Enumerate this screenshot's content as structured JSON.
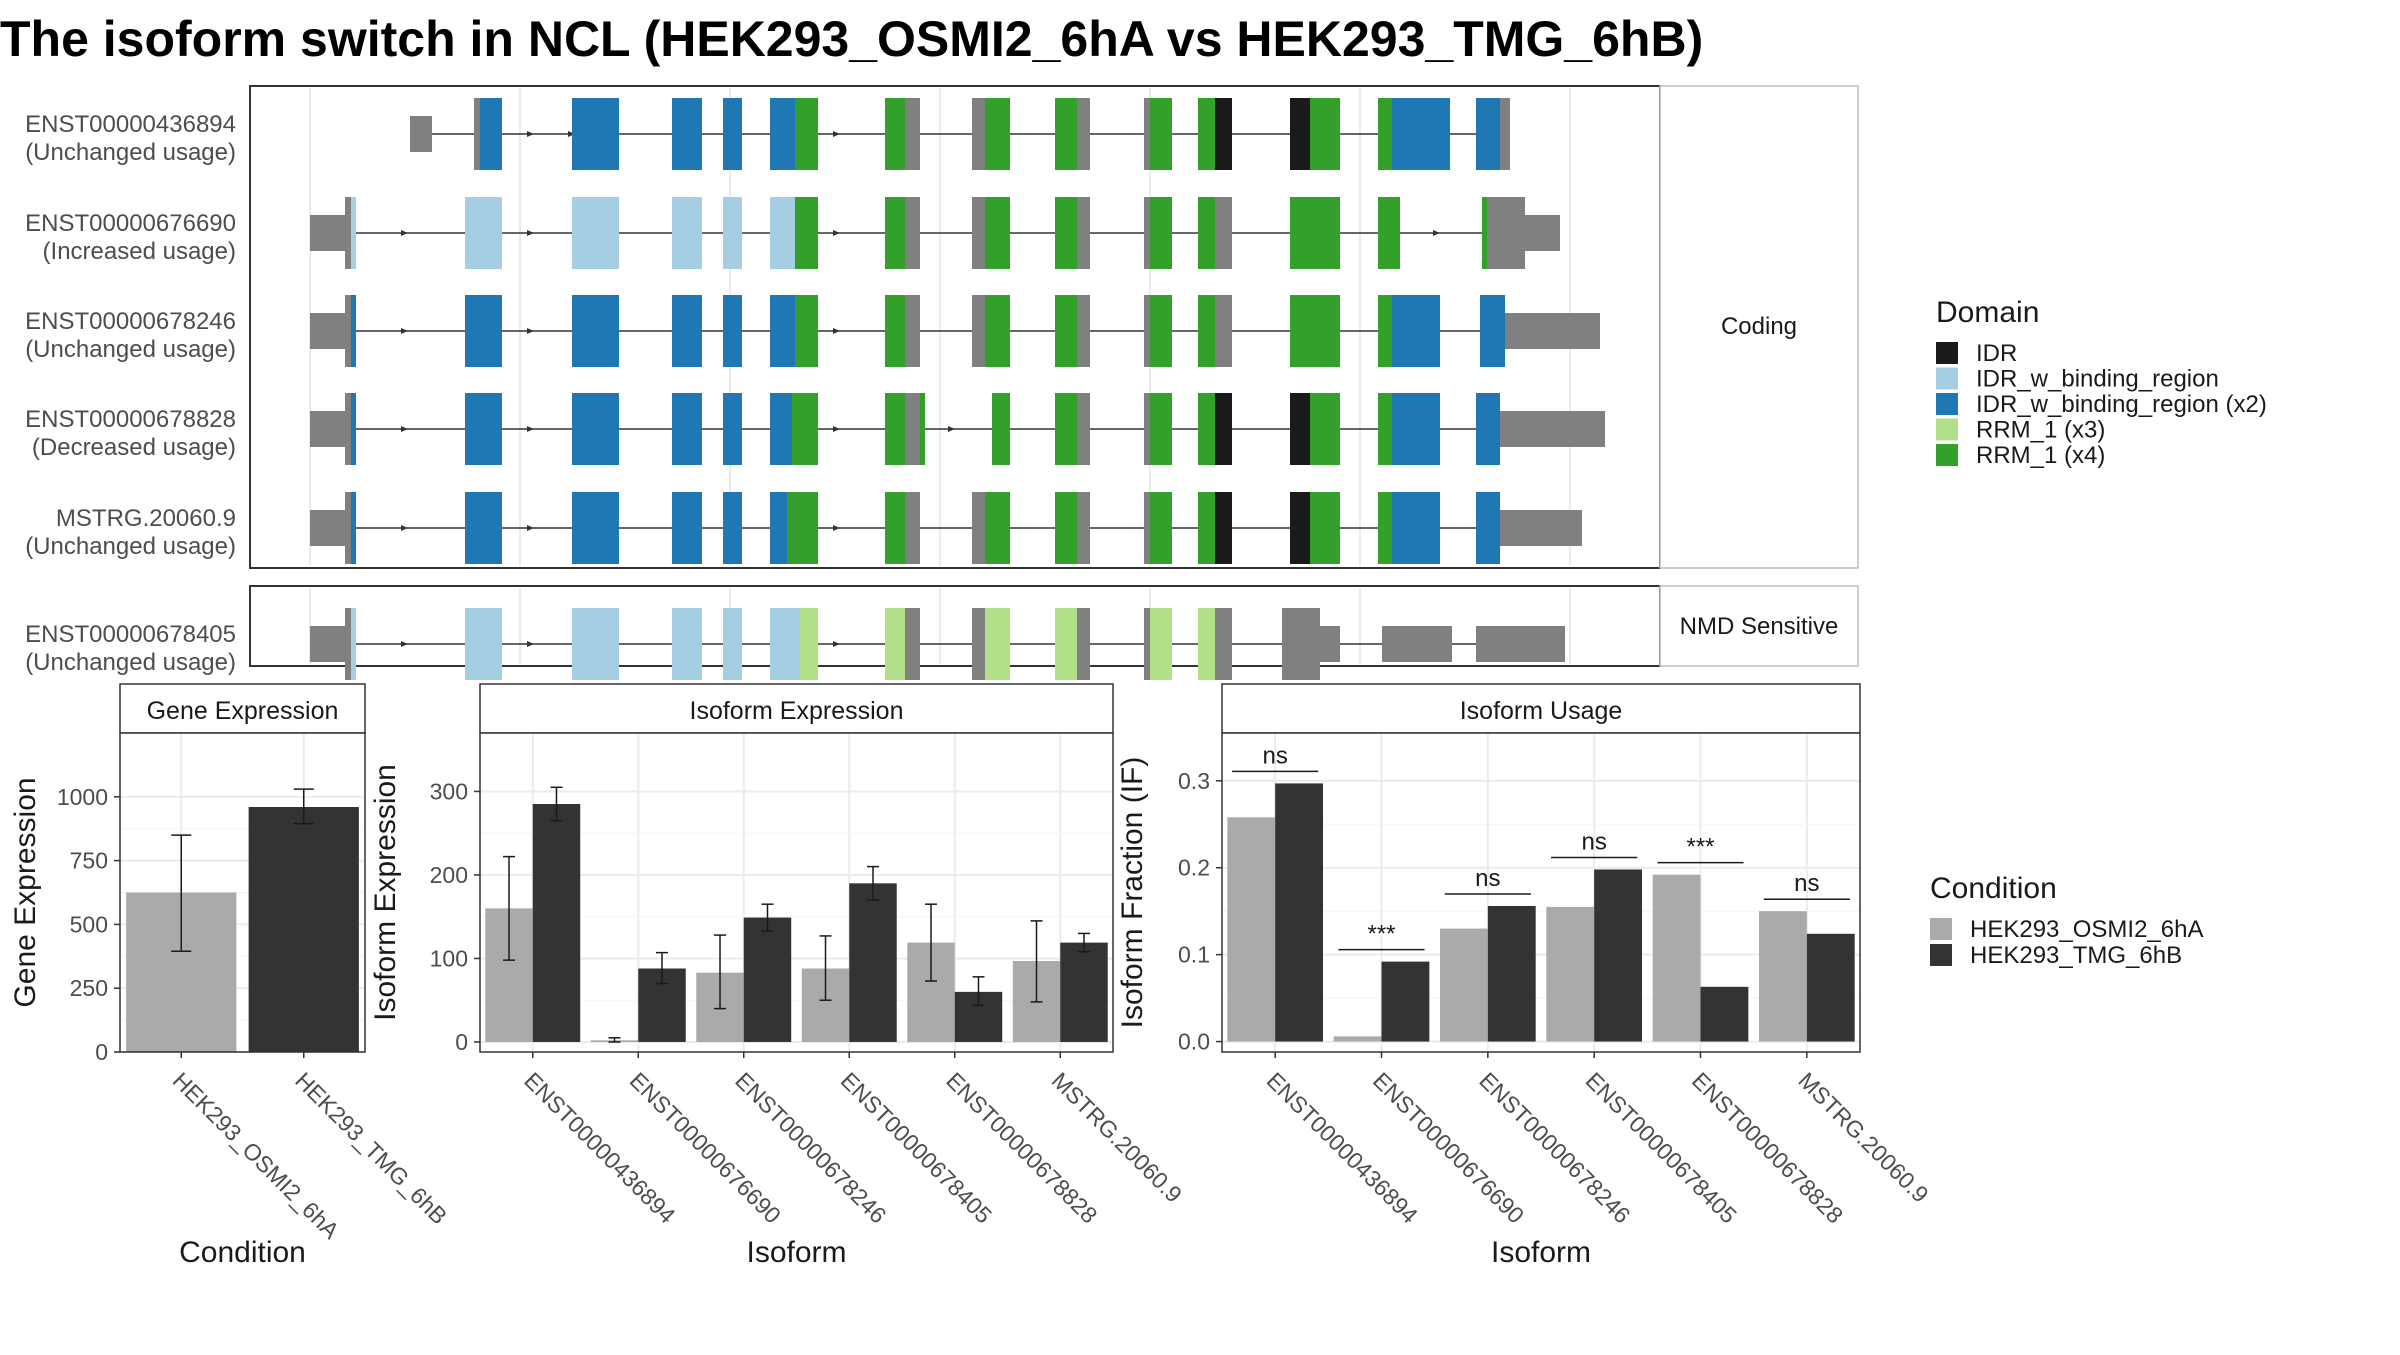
{
  "title": "The isoform switch in NCL (HEK293_OSMI2_6hA vs HEK293_TMG_6hB)",
  "colors": {
    "IDR": "#1a1a1a",
    "IDR_w_binding_region": "#a6cee3",
    "IDR_w_binding_region (x2)": "#1f78b4",
    "RRM_1 (x3)": "#b2df8a",
    "RRM_1 (x4)": "#33a02c",
    "utr": "#808080",
    "cond_a": "#aaaaaa",
    "cond_b": "#333333"
  },
  "transcripts": {
    "panels": [
      {
        "label": "Coding",
        "rows": [
          {
            "id": "ENST00000436894",
            "usage": "(Unchanged usage)"
          },
          {
            "id": "ENST00000676690",
            "usage": "(Increased usage)"
          },
          {
            "id": "ENST00000678246",
            "usage": "(Unchanged usage)"
          },
          {
            "id": "ENST00000678828",
            "usage": "(Decreased usage)"
          },
          {
            "id": "MSTRG.20060.9",
            "usage": "(Unchanged usage)"
          }
        ]
      },
      {
        "label": "NMD Sensitive",
        "rows": [
          {
            "id": "ENST00000678405",
            "usage": "(Unchanged usage)"
          }
        ]
      }
    ]
  },
  "legend_domain": {
    "title": "Domain",
    "items": [
      "IDR",
      "IDR_w_binding_region",
      "IDR_w_binding_region (x2)",
      "RRM_1 (x3)",
      "RRM_1 (x4)"
    ]
  },
  "legend_condition": {
    "title": "Condition",
    "items": [
      "HEK293_OSMI2_6hA",
      "HEK293_TMG_6hB"
    ]
  },
  "chart_data": [
    {
      "type": "bar",
      "title": "Gene Expression",
      "xlabel": "Condition",
      "ylabel": "Gene Expression",
      "categories": [
        "HEK293_OSMI2_6hA",
        "HEK293_TMG_6hB"
      ],
      "values": [
        625,
        960
      ],
      "errors": [
        [
          395,
          850
        ],
        [
          895,
          1030
        ]
      ],
      "ylim": [
        0,
        1250
      ],
      "yticks": [
        0,
        250,
        500,
        750,
        1000
      ]
    },
    {
      "type": "bar",
      "title": "Isoform Expression",
      "xlabel": "Isoform",
      "ylabel": "Isoform Expression",
      "categories": [
        "ENST00000436894",
        "ENST00000676690",
        "ENST00000678246",
        "ENST00000678405",
        "ENST00000678828",
        "MSTRG.20060.9"
      ],
      "series": [
        {
          "name": "HEK293_OSMI2_6hA",
          "values": [
            160,
            2,
            83,
            88,
            119,
            97
          ],
          "errors": [
            [
              98,
              222
            ],
            [
              0,
              5
            ],
            [
              40,
              128
            ],
            [
              50,
              127
            ],
            [
              73,
              165
            ],
            [
              48,
              145
            ]
          ]
        },
        {
          "name": "HEK293_TMG_6hB",
          "values": [
            285,
            88,
            149,
            190,
            60,
            119
          ],
          "errors": [
            [
              265,
              305
            ],
            [
              70,
              107
            ],
            [
              133,
              165
            ],
            [
              170,
              210
            ],
            [
              44,
              78
            ],
            [
              108,
              130
            ]
          ]
        }
      ],
      "ylim": [
        -12,
        370
      ],
      "yticks": [
        0,
        100,
        200,
        300
      ]
    },
    {
      "type": "bar",
      "title": "Isoform Usage",
      "xlabel": "Isoform",
      "ylabel": "Isoform Fraction (IF)",
      "categories": [
        "ENST00000436894",
        "ENST00000676690",
        "ENST00000678246",
        "ENST00000678405",
        "ENST00000678828",
        "MSTRG.20060.9"
      ],
      "series": [
        {
          "name": "HEK293_OSMI2_6hA",
          "values": [
            0.258,
            0.006,
            0.13,
            0.155,
            0.192,
            0.15
          ]
        },
        {
          "name": "HEK293_TMG_6hB",
          "values": [
            0.297,
            0.092,
            0.156,
            0.198,
            0.063,
            0.124
          ]
        }
      ],
      "significance": [
        "ns",
        "***",
        "ns",
        "ns",
        "***",
        "ns"
      ],
      "ylim": [
        -0.012,
        0.355
      ],
      "yticks": [
        0.0,
        0.1,
        0.2,
        0.3
      ]
    }
  ]
}
